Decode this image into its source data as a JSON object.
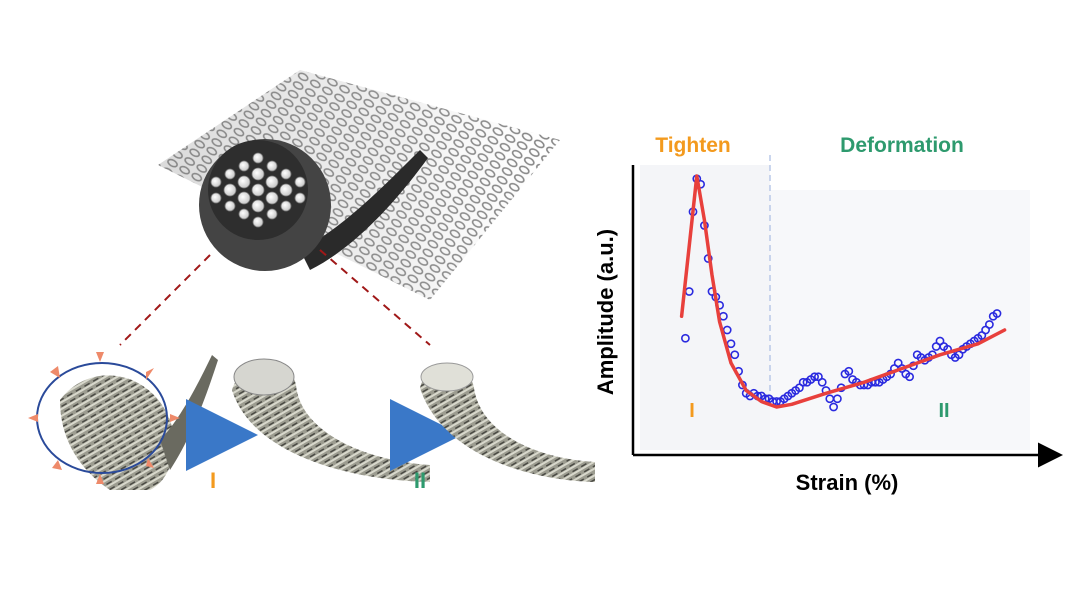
{
  "chart_data": {
    "type": "scatter",
    "xlabel": "Strain (%)",
    "ylabel": "Amplitude (a.u.)",
    "region_labels": {
      "left": "Tighten",
      "right": "Deformation"
    },
    "phase_labels": {
      "first": "I",
      "second": "II"
    },
    "xlim": [
      0,
      100
    ],
    "ylim": [
      0,
      100
    ],
    "grid": false,
    "legend": "none",
    "colors": {
      "points": "#2a2adf",
      "fit": "#e8403c",
      "tighten": "#f39a1e",
      "deformation": "#2e9a6e",
      "region_bg": "#f2f4f8",
      "divider": "#b8c8e8",
      "axis": "#000000"
    },
    "series": [
      {
        "role": "measured",
        "points": [
          [
            8,
            37
          ],
          [
            9,
            54
          ],
          [
            10,
            83
          ],
          [
            11,
            95
          ],
          [
            12,
            93
          ],
          [
            13,
            78
          ],
          [
            14,
            66
          ],
          [
            15,
            54
          ],
          [
            16,
            52
          ],
          [
            17,
            49
          ],
          [
            18,
            45
          ],
          [
            19,
            40
          ],
          [
            20,
            35
          ],
          [
            21,
            31
          ],
          [
            22,
            25
          ],
          [
            23,
            20
          ],
          [
            24,
            17
          ],
          [
            25,
            16
          ],
          [
            26,
            17
          ],
          [
            27,
            16
          ],
          [
            28,
            16
          ],
          [
            29,
            15
          ],
          [
            30,
            15
          ],
          [
            31,
            14
          ],
          [
            32,
            14
          ],
          [
            33,
            14
          ],
          [
            34,
            15
          ],
          [
            35,
            16
          ],
          [
            36,
            17
          ],
          [
            37,
            18
          ],
          [
            38,
            19
          ],
          [
            39,
            21
          ],
          [
            40,
            21
          ],
          [
            41,
            22
          ],
          [
            42,
            23
          ],
          [
            43,
            23
          ],
          [
            44,
            21
          ],
          [
            45,
            18
          ],
          [
            46,
            15
          ],
          [
            47,
            12
          ],
          [
            48,
            15
          ],
          [
            49,
            19
          ],
          [
            50,
            24
          ],
          [
            51,
            25
          ],
          [
            52,
            22
          ],
          [
            53,
            21
          ],
          [
            54,
            20
          ],
          [
            55,
            20
          ],
          [
            56,
            20
          ],
          [
            57,
            21
          ],
          [
            58,
            21
          ],
          [
            59,
            21
          ],
          [
            60,
            22
          ],
          [
            61,
            23
          ],
          [
            62,
            24
          ],
          [
            63,
            26
          ],
          [
            64,
            28
          ],
          [
            65,
            26
          ],
          [
            66,
            24
          ],
          [
            67,
            23
          ],
          [
            68,
            27
          ],
          [
            69,
            31
          ],
          [
            70,
            30
          ],
          [
            71,
            29
          ],
          [
            72,
            30
          ],
          [
            73,
            31
          ],
          [
            74,
            34
          ],
          [
            75,
            36
          ],
          [
            76,
            34
          ],
          [
            77,
            33
          ],
          [
            78,
            31
          ],
          [
            79,
            30
          ],
          [
            80,
            31
          ],
          [
            81,
            33
          ],
          [
            82,
            34
          ],
          [
            83,
            35
          ],
          [
            84,
            36
          ],
          [
            85,
            37
          ],
          [
            86,
            38
          ],
          [
            87,
            40
          ],
          [
            88,
            42
          ],
          [
            89,
            45
          ],
          [
            90,
            46
          ]
        ]
      },
      {
        "role": "fit",
        "points": [
          [
            7,
            45
          ],
          [
            11,
            96
          ],
          [
            13,
            80
          ],
          [
            15,
            60
          ],
          [
            17,
            43
          ],
          [
            20,
            28
          ],
          [
            24,
            18
          ],
          [
            28,
            14
          ],
          [
            32,
            12
          ],
          [
            36,
            13
          ],
          [
            45,
            17
          ],
          [
            55,
            21
          ],
          [
            65,
            26
          ],
          [
            75,
            31
          ],
          [
            85,
            35
          ],
          [
            92,
            40
          ]
        ]
      }
    ],
    "annotations": [
      "Tighten",
      "Deformation",
      "I",
      "II"
    ]
  },
  "figure": {
    "stage_labels": [
      "I",
      "II"
    ]
  }
}
